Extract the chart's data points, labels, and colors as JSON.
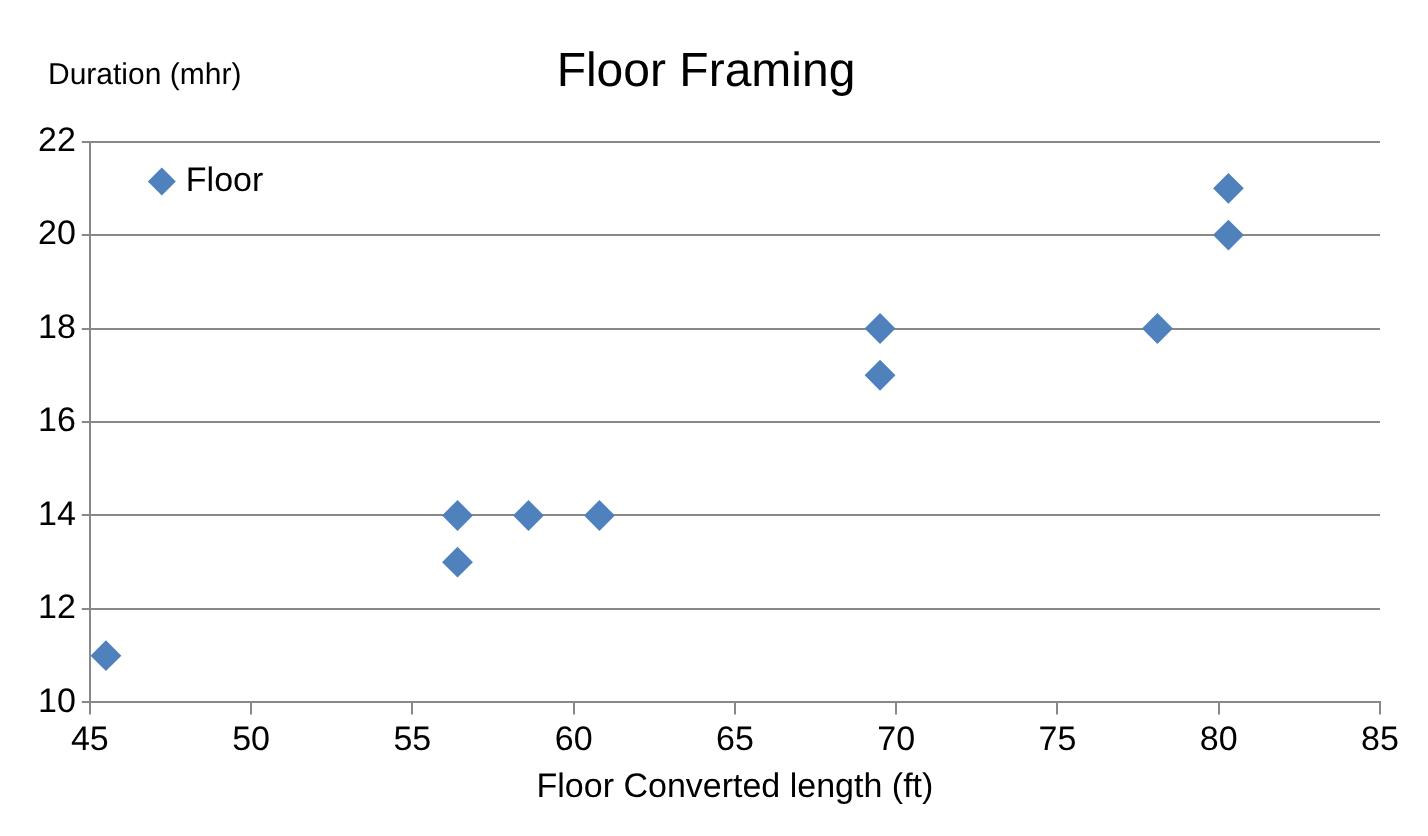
{
  "chart_data": {
    "type": "scatter",
    "title": "Floor Framing",
    "xlabel": "Floor Converted length (ft)",
    "ylabel": "Duration (mhr)",
    "series": [
      {
        "name": "Floor",
        "color": "#4f81bd",
        "x": [
          45.5,
          56.4,
          56.4,
          58.6,
          60.8,
          69.5,
          69.5,
          78.1,
          80.3,
          80.3
        ],
        "values": [
          11,
          14,
          13,
          14,
          14,
          18,
          17,
          18,
          21,
          20
        ]
      }
    ],
    "xlim": [
      45,
      85
    ],
    "xticks": [
      45,
      50,
      55,
      60,
      65,
      70,
      75,
      80,
      85
    ],
    "ylim": [
      10,
      22
    ],
    "yticks": [
      10,
      12,
      14,
      16,
      18,
      20,
      22
    ],
    "grid": "y",
    "legend": "top left",
    "marker": "diamond"
  }
}
